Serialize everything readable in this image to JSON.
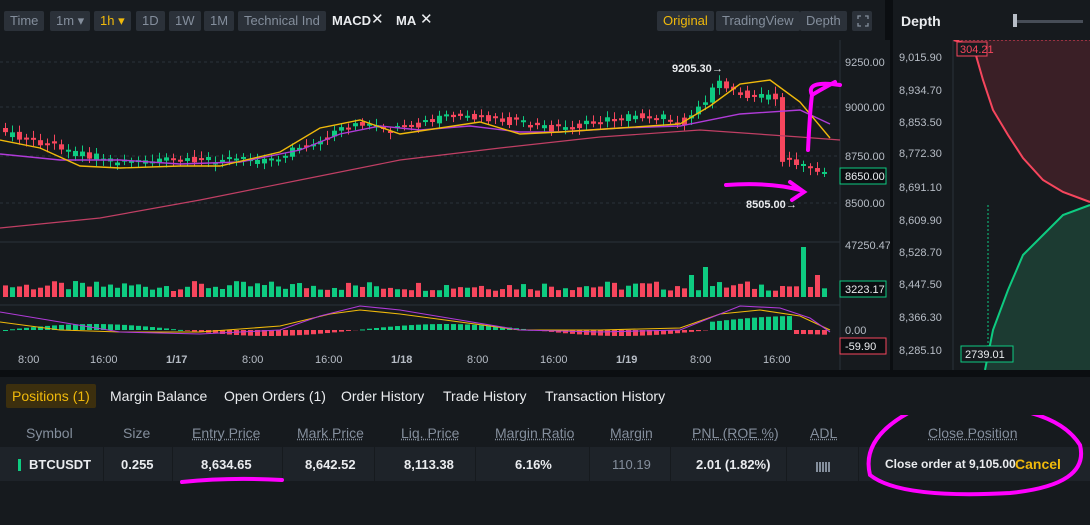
{
  "toolbar": {
    "buttons": [
      "Time",
      "1m ▾",
      "1h ▾",
      "1D",
      "1W",
      "1M",
      "Technical Ind"
    ],
    "indicators": [
      "MACD",
      "MA"
    ],
    "close_glyph": "✕",
    "views": [
      "Original",
      "TradingView",
      "Depth"
    ],
    "fullscreen_icon": "expand-icon"
  },
  "chart": {
    "price_axis": [
      "9250.00",
      "9000.00",
      "8750.00",
      "8500.00"
    ],
    "current_price": "8650.00",
    "high_label": "9205.30",
    "low_label": "8505.00",
    "volume_top": "47250.47",
    "volume_current": "3223.17",
    "macd_zero": "0.00",
    "macd_current": "-59.90",
    "time_axis": [
      "8:00",
      "16:00",
      "1/17",
      "8:00",
      "16:00",
      "1/18",
      "8:00",
      "16:00",
      "1/19",
      "8:00",
      "16:00"
    ],
    "arrow_glyph": "→"
  },
  "depth": {
    "title": "Depth",
    "prices": [
      "9,015.90",
      "8,934.70",
      "8,853.50",
      "8,772.30",
      "8,691.10",
      "8,609.90",
      "8,528.70",
      "8,447.50",
      "8,366.30",
      "8,285.10"
    ],
    "ask_label": "304.21",
    "bid_label": "2739.01",
    "colors": {
      "ask": "#f6465d",
      "bid": "#0ecb81"
    }
  },
  "tabs": [
    "Positions (1)",
    "Margin Balance",
    "Open Orders (1)",
    "Order History",
    "Trade History",
    "Transaction History"
  ],
  "positions": {
    "headers": [
      "Symbol",
      "Size",
      "Entry Price",
      "Mark Price",
      "Liq. Price",
      "Margin Ratio",
      "Margin",
      "PNL (ROE %)",
      "ADL",
      "Close Position"
    ],
    "row": {
      "symbol": "BTCUSDT",
      "size": "0.255",
      "entry_price": "8,634.65",
      "mark_price": "8,642.52",
      "liq_price": "8,113.38",
      "margin_ratio": "6.16%",
      "margin": "110.19",
      "pnl": "2.01 (1.82%)",
      "adl_icon": "adl-bars-icon",
      "close_text": "Close order at 9,105.00",
      "cancel": "Cancel"
    }
  },
  "colors": {
    "accent": "#f0b90b",
    "up": "#0ecb81",
    "down": "#f6465d",
    "annotation": "#ff00ff"
  }
}
